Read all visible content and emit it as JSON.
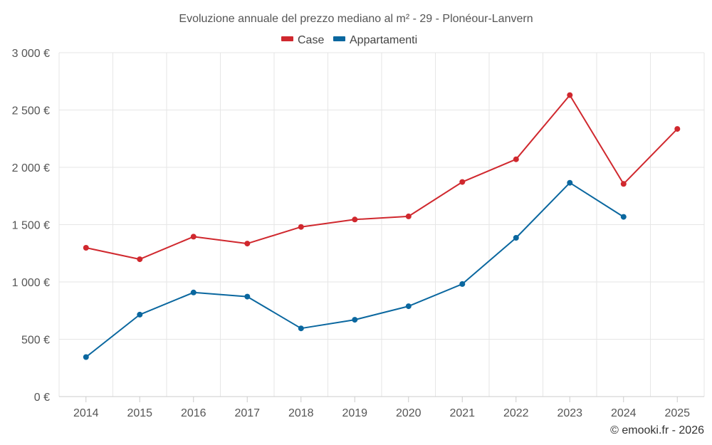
{
  "chart_data": {
    "type": "line",
    "title": "Evoluzione annuale del prezzo mediano al m² - 29 - Plonéour-Lanvern",
    "x": [
      "2014",
      "2015",
      "2016",
      "2017",
      "2018",
      "2019",
      "2020",
      "2021",
      "2022",
      "2023",
      "2024",
      "2025"
    ],
    "series": [
      {
        "name": "Case",
        "color": "#d0282e",
        "values": [
          1298,
          1198,
          1395,
          1335,
          1480,
          1545,
          1572,
          1872,
          2070,
          2630,
          1855,
          2335
        ]
      },
      {
        "name": "Appartamenti",
        "color": "#0a679f",
        "values": [
          345,
          715,
          908,
          872,
          595,
          670,
          788,
          982,
          1385,
          1865,
          1568,
          null
        ]
      }
    ],
    "ylim": [
      0,
      3000
    ],
    "yticks": [
      0,
      500,
      1000,
      1500,
      2000,
      2500,
      3000
    ],
    "ytick_labels": [
      "0 €",
      "500 €",
      "1 000 €",
      "1 500 €",
      "2 000 €",
      "2 500 €",
      "3 000 €"
    ],
    "xlabel": "",
    "ylabel": "",
    "grid": true,
    "legend_position": "top-center",
    "credit": "© emooki.fr - 2026"
  }
}
